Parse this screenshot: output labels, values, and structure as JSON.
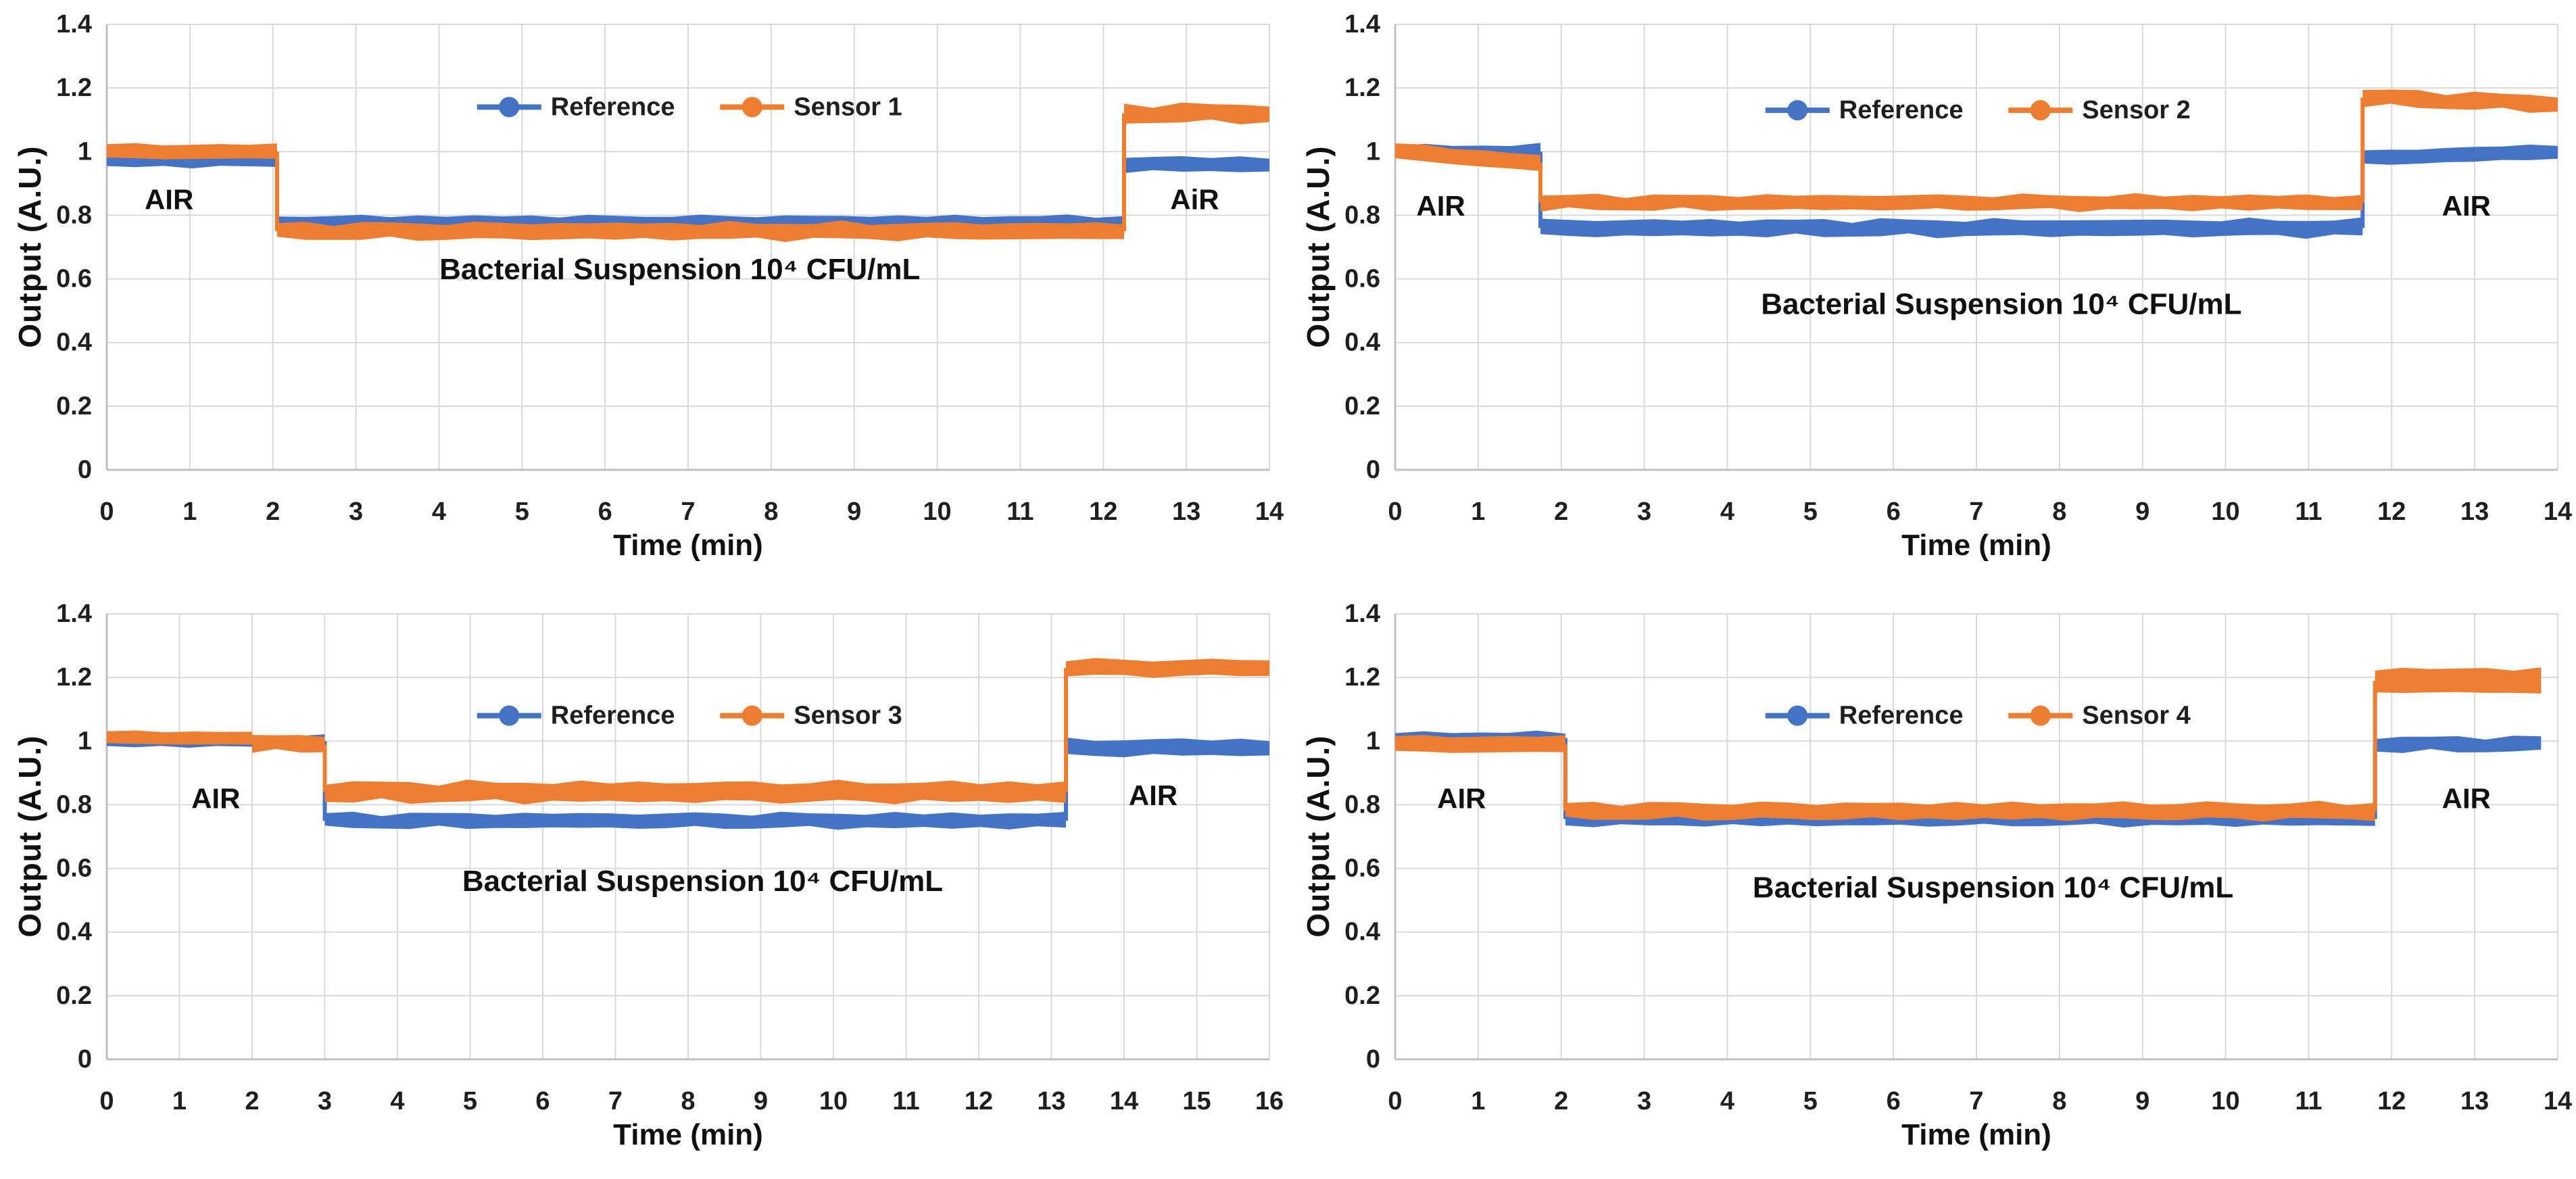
{
  "figure": {
    "background": "#FFFFFF",
    "grid_color": "#D9D9D9",
    "axis_color": "#BFBFBF",
    "text_color": "#1F1F1F",
    "annotation_color": "#111111",
    "reference_color": "#4472C4",
    "sensor_color": "#ED7D31"
  },
  "chart_data": [
    {
      "type": "line",
      "panel": "top-left",
      "xlabel": "Time (min)",
      "ylabel": "Output (A.U.)",
      "xlim": [
        0,
        14
      ],
      "ylim": [
        0,
        1.4
      ],
      "xticks": [
        "0",
        "1",
        "2",
        "3",
        "4",
        "5",
        "6",
        "7",
        "8",
        "9",
        "10",
        "11",
        "12",
        "13",
        "14"
      ],
      "yticks": [
        "0",
        "0.2",
        "0.4",
        "0.6",
        "0.8",
        "1",
        "1.2",
        "1.4"
      ],
      "grid": true,
      "legend_position": "top-center-inside",
      "legend_y": 1.14,
      "series": [
        {
          "name": "Reference",
          "color": "#4472C4",
          "segments": [
            {
              "x0": 0,
              "x1": 2.05,
              "y0": 0.97,
              "y1": 0.97,
              "w": 0.035
            },
            {
              "x0": 2.05,
              "x1": 12.25,
              "y0": 0.78,
              "y1": 0.78,
              "w": 0.035
            },
            {
              "x0": 12.25,
              "x1": 14,
              "y0": 0.96,
              "y1": 0.96,
              "w": 0.045
            }
          ]
        },
        {
          "name": "Sensor 1",
          "color": "#ED7D31",
          "segments": [
            {
              "x0": 0,
              "x1": 2.05,
              "y0": 1.0,
              "y1": 1.0,
              "w": 0.045
            },
            {
              "x0": 2.05,
              "x1": 12.25,
              "y0": 0.75,
              "y1": 0.75,
              "w": 0.05
            },
            {
              "x0": 12.25,
              "x1": 14,
              "y0": 1.12,
              "y1": 1.12,
              "w": 0.055
            }
          ]
        }
      ],
      "annotations": [
        {
          "text": "AIR",
          "x": 0.75,
          "y": 0.85,
          "size": 42
        },
        {
          "text": "Bacterial Suspension 10⁴ CFU/mL",
          "x": 6.9,
          "y": 0.63,
          "size": 44
        },
        {
          "text": "AiR",
          "x": 13.1,
          "y": 0.85,
          "size": 42
        }
      ]
    },
    {
      "type": "line",
      "panel": "top-right",
      "xlabel": "Time (min)",
      "ylabel": "Output (A.U.)",
      "xlim": [
        0,
        14
      ],
      "ylim": [
        0,
        1.4
      ],
      "xticks": [
        "0",
        "1",
        "2",
        "3",
        "4",
        "5",
        "6",
        "7",
        "8",
        "9",
        "10",
        "11",
        "12",
        "13",
        "14"
      ],
      "yticks": [
        "0",
        "0.2",
        "0.4",
        "0.6",
        "0.8",
        "1",
        "1.2",
        "1.4"
      ],
      "grid": true,
      "legend_position": "top-center-inside",
      "legend_y": 1.13,
      "series": [
        {
          "name": "Reference",
          "color": "#4472C4",
          "segments": [
            {
              "x0": 0,
              "x1": 1.75,
              "y0": 1.0,
              "y1": 1.0,
              "w": 0.04
            },
            {
              "x0": 1.75,
              "x1": 11.65,
              "y0": 0.76,
              "y1": 0.76,
              "w": 0.05
            },
            {
              "x0": 11.65,
              "x1": 14,
              "y0": 0.98,
              "y1": 1.0,
              "w": 0.045
            }
          ]
        },
        {
          "name": "Sensor 2",
          "color": "#ED7D31",
          "segments": [
            {
              "x0": 0,
              "x1": 1.75,
              "y0": 1.0,
              "y1": 0.965,
              "w": 0.05
            },
            {
              "x0": 1.75,
              "x1": 11.65,
              "y0": 0.84,
              "y1": 0.84,
              "w": 0.045
            },
            {
              "x0": 11.65,
              "x1": 14,
              "y0": 1.17,
              "y1": 1.15,
              "w": 0.05
            }
          ]
        }
      ],
      "annotations": [
        {
          "text": "AIR",
          "x": 0.55,
          "y": 0.83,
          "size": 42
        },
        {
          "text": "Bacterial Suspension 10⁴ CFU/mL",
          "x": 7.3,
          "y": 0.52,
          "size": 44
        },
        {
          "text": "AIR",
          "x": 12.9,
          "y": 0.83,
          "size": 42
        }
      ]
    },
    {
      "type": "line",
      "panel": "bottom-left",
      "xlabel": "Time (min)",
      "ylabel": "Output (A.U.)",
      "xlim": [
        0,
        16
      ],
      "ylim": [
        0,
        1.4
      ],
      "xticks": [
        "0",
        "1",
        "2",
        "3",
        "4",
        "5",
        "6",
        "7",
        "8",
        "9",
        "10",
        "11",
        "12",
        "13",
        "14",
        "15",
        "16"
      ],
      "yticks": [
        "0",
        "0.2",
        "0.4",
        "0.6",
        "0.8",
        "1",
        "1.2",
        "1.4"
      ],
      "grid": true,
      "legend_position": "top-center-inside",
      "legend_y": 1.08,
      "series": [
        {
          "name": "Reference",
          "color": "#4472C4",
          "segments": [
            {
              "x0": 0,
              "x1": 3.0,
              "y0": 1.0,
              "y1": 1.0,
              "w": 0.035
            },
            {
              "x0": 3.0,
              "x1": 13.2,
              "y0": 0.75,
              "y1": 0.75,
              "w": 0.045
            },
            {
              "x0": 13.2,
              "x1": 16,
              "y0": 0.98,
              "y1": 0.98,
              "w": 0.05
            }
          ]
        },
        {
          "name": "Sensor 3",
          "color": "#ED7D31",
          "segments": [
            {
              "x0": 0,
              "x1": 2.0,
              "y0": 1.01,
              "y1": 1.01,
              "w": 0.04
            },
            {
              "x0": 2.0,
              "x1": 3.0,
              "y0": 0.995,
              "y1": 0.99,
              "w": 0.05
            },
            {
              "x0": 3.0,
              "x1": 13.2,
              "y0": 0.84,
              "y1": 0.84,
              "w": 0.06
            },
            {
              "x0": 13.2,
              "x1": 16,
              "y0": 1.23,
              "y1": 1.23,
              "w": 0.05
            }
          ]
        }
      ],
      "annotations": [
        {
          "text": "AIR",
          "x": 1.5,
          "y": 0.82,
          "size": 42
        },
        {
          "text": "Bacterial Suspension 10⁴  CFU/mL",
          "x": 8.2,
          "y": 0.56,
          "size": 44
        },
        {
          "text": "AIR",
          "x": 14.4,
          "y": 0.83,
          "size": 42
        }
      ]
    },
    {
      "type": "line",
      "panel": "bottom-right",
      "xlabel": "Time (min)",
      "ylabel": "Output (A.U.)",
      "xlim": [
        0,
        14
      ],
      "ylim": [
        0,
        1.4
      ],
      "xticks": [
        "0",
        "1",
        "2",
        "3",
        "4",
        "5",
        "6",
        "7",
        "8",
        "9",
        "10",
        "11",
        "12",
        "13",
        "14"
      ],
      "yticks": [
        "0",
        "0.2",
        "0.4",
        "0.6",
        "0.8",
        "1",
        "1.2",
        "1.4"
      ],
      "grid": true,
      "legend_position": "top-center-inside",
      "legend_y": 1.08,
      "series": [
        {
          "name": "Reference",
          "color": "#4472C4",
          "segments": [
            {
              "x0": 0,
              "x1": 2.05,
              "y0": 1.01,
              "y1": 1.01,
              "w": 0.035
            },
            {
              "x0": 2.05,
              "x1": 11.8,
              "y0": 0.755,
              "y1": 0.755,
              "w": 0.04
            },
            {
              "x0": 11.8,
              "x1": 13.8,
              "y0": 0.99,
              "y1": 0.99,
              "w": 0.045
            }
          ]
        },
        {
          "name": "Sensor 4",
          "color": "#ED7D31",
          "segments": [
            {
              "x0": 0,
              "x1": 2.05,
              "y0": 0.99,
              "y1": 0.99,
              "w": 0.05
            },
            {
              "x0": 2.05,
              "x1": 11.8,
              "y0": 0.78,
              "y1": 0.78,
              "w": 0.05
            },
            {
              "x0": 11.8,
              "x1": 13.8,
              "y0": 1.19,
              "y1": 1.19,
              "w": 0.075
            }
          ]
        }
      ],
      "annotations": [
        {
          "text": "AIR",
          "x": 0.8,
          "y": 0.82,
          "size": 42
        },
        {
          "text": "Bacterial Suspension 10⁴ CFU/mL",
          "x": 7.2,
          "y": 0.54,
          "size": 44
        },
        {
          "text": "AIR",
          "x": 12.9,
          "y": 0.82,
          "size": 42
        }
      ]
    }
  ]
}
